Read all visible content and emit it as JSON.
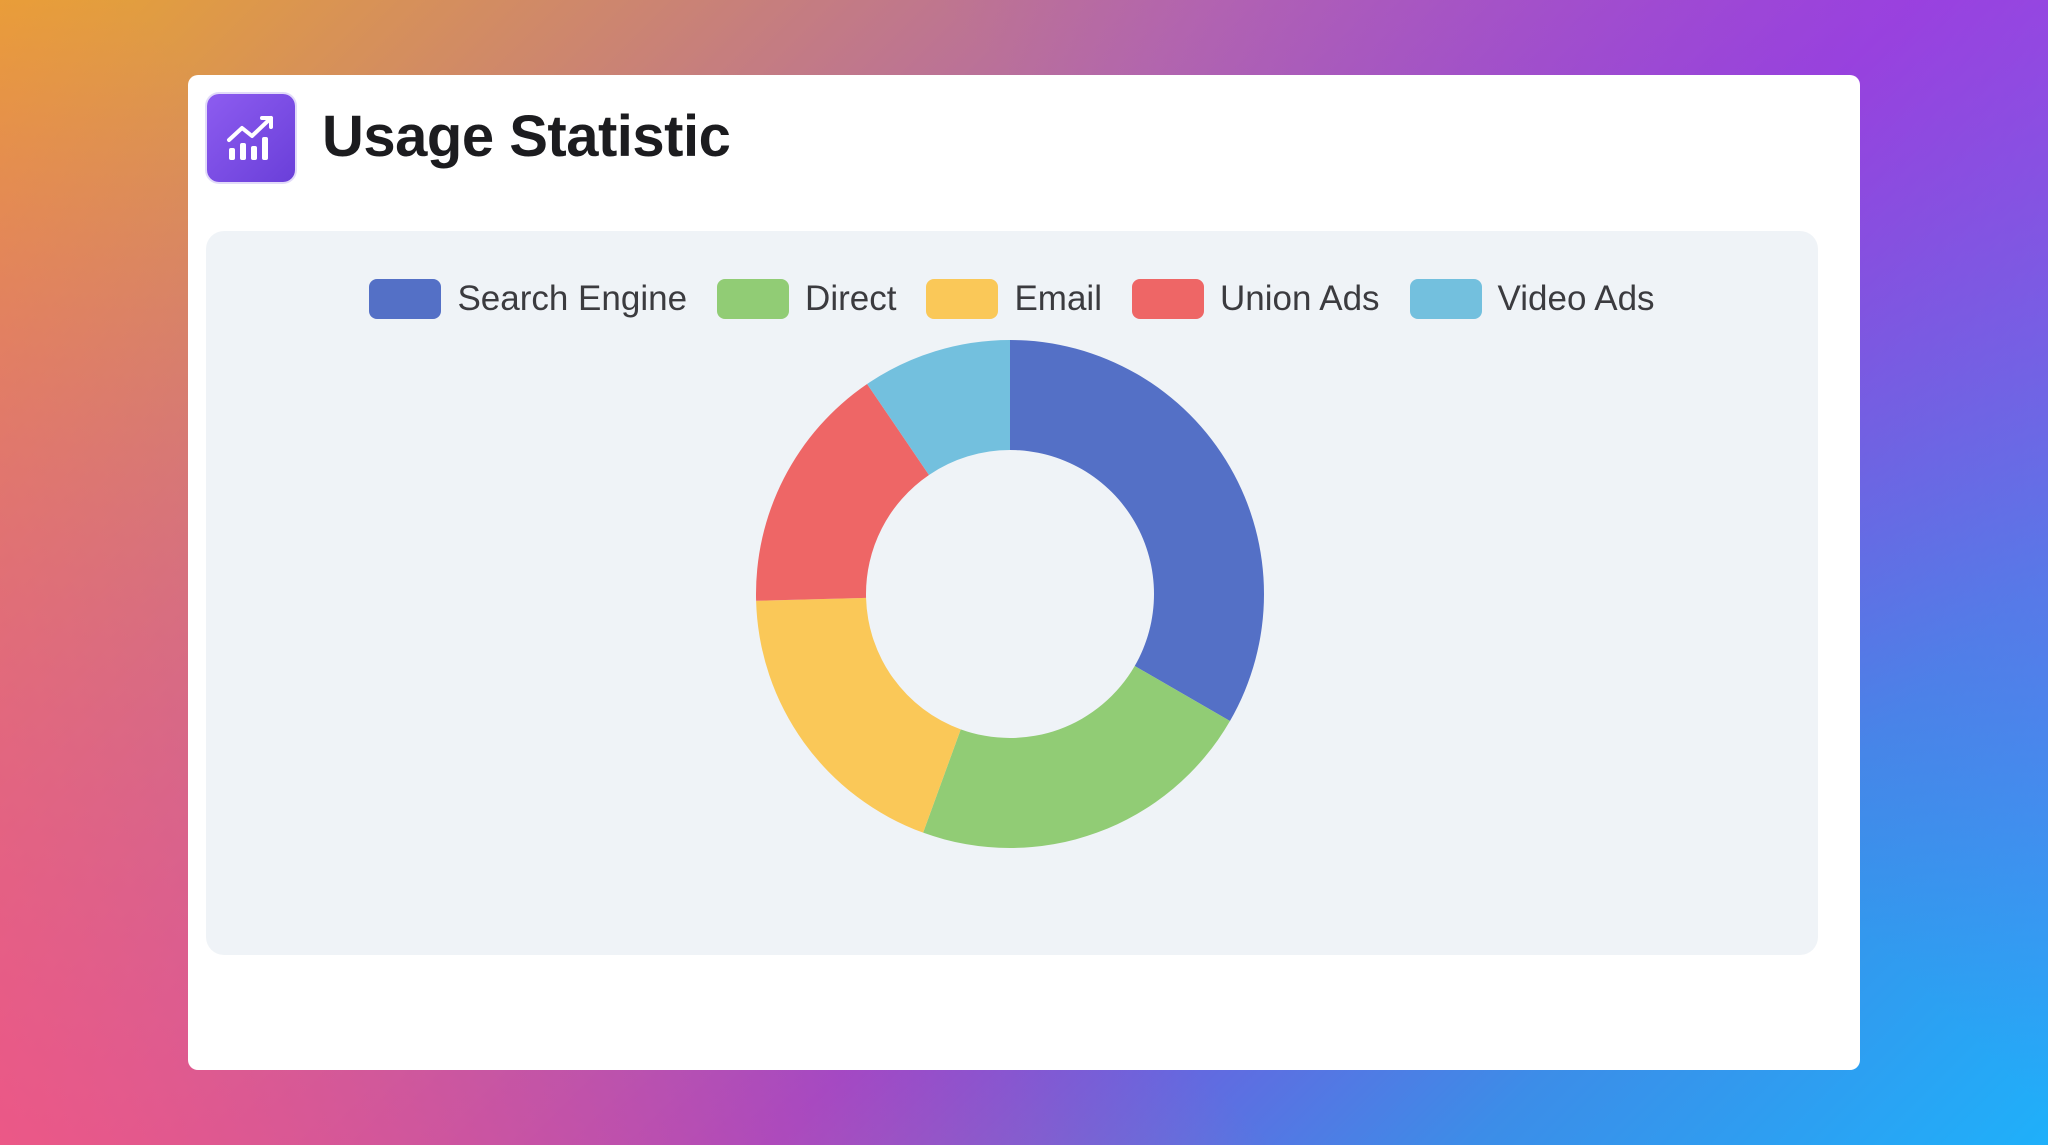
{
  "header": {
    "title": "Usage Statistic",
    "icon": "chart-line-icon",
    "icon_color": "#7b4fe6"
  },
  "chart_data": {
    "type": "pie",
    "variant": "donut",
    "title": "",
    "legend_position": "top",
    "series": [
      {
        "name": "Search Engine",
        "value": 33.3,
        "color": "#5470c6"
      },
      {
        "name": "Direct",
        "value": 22.2,
        "color": "#91cc75"
      },
      {
        "name": "Email",
        "value": 19.0,
        "color": "#fac858"
      },
      {
        "name": "Union Ads",
        "value": 15.9,
        "color": "#ee6666"
      },
      {
        "name": "Video Ads",
        "value": 9.5,
        "color": "#73c0de"
      }
    ]
  }
}
